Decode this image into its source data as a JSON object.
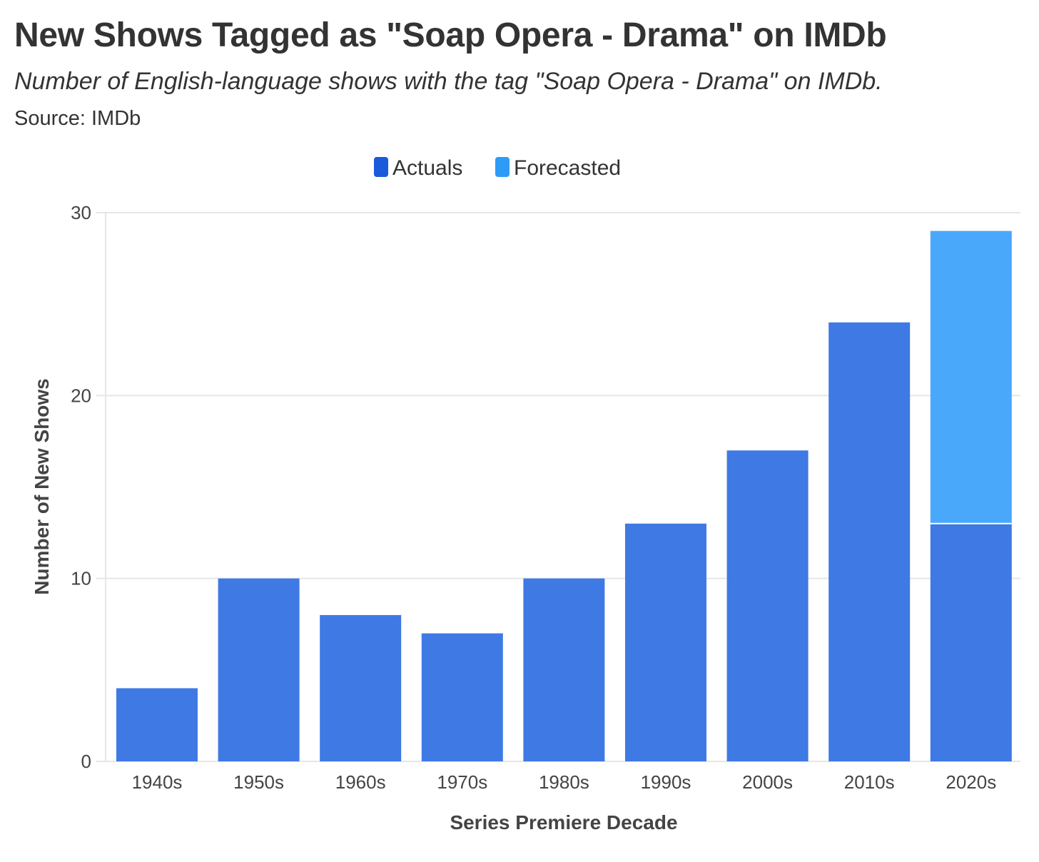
{
  "header": {
    "title": "New Shows Tagged as \"Soap Opera - Drama\" on IMDb",
    "subtitle": "Number of English-language shows with the tag \"Soap Opera - Drama\" on IMDb.",
    "source": "Source: IMDb"
  },
  "colors": {
    "actuals": "#3f79e4",
    "forecasted": "#4aa8fb",
    "legend_actuals": "#1a5adb",
    "legend_forecasted": "#2f9bf8",
    "grid": "#e6e6e6",
    "text": "#333333"
  },
  "chart_data": {
    "type": "bar",
    "stacked": true,
    "title": "New Shows Tagged as \"Soap Opera - Drama\" on IMDb",
    "xlabel": "Series Premiere Decade",
    "ylabel": "Number of New Shows",
    "ylim": [
      0,
      30
    ],
    "yticks": [
      0,
      10,
      20,
      30
    ],
    "legend_position": "top-center",
    "grid": true,
    "categories": [
      "1940s",
      "1950s",
      "1960s",
      "1970s",
      "1980s",
      "1990s",
      "2000s",
      "2010s",
      "2020s"
    ],
    "series": [
      {
        "name": "Actuals",
        "values": [
          4,
          10,
          8,
          7,
          10,
          13,
          17,
          24,
          13
        ]
      },
      {
        "name": "Forecasted",
        "values": [
          0,
          0,
          0,
          0,
          0,
          0,
          0,
          0,
          16
        ]
      }
    ]
  }
}
